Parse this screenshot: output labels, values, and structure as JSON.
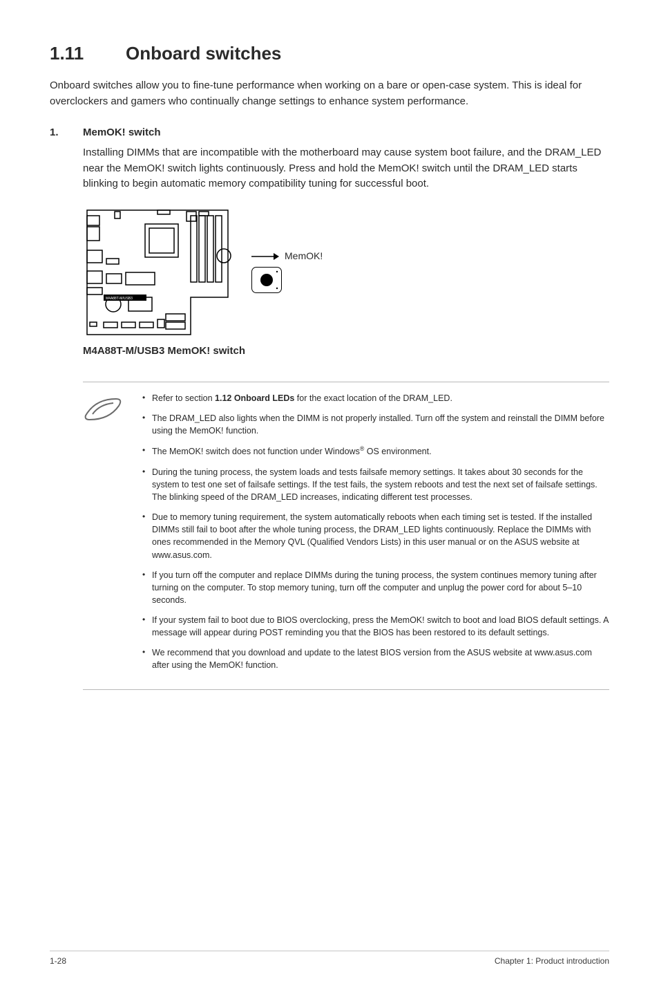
{
  "heading": {
    "num": "1.11",
    "title": "Onboard switches"
  },
  "intro": "Onboard switches allow you to fine-tune performance when working on a bare or open-case system. This is ideal for overclockers and gamers who continually change settings to enhance system performance.",
  "item": {
    "num": "1.",
    "title": "MemOK! switch",
    "body": "Installing DIMMs that are incompatible with the motherboard may cause system boot failure, and the DRAM_LED near the MemOK! switch lights continuously. Press and hold the MemOK! switch until the DRAM_LED starts blinking to begin automatic memory compatibility tuning for successful boot."
  },
  "diagram": {
    "memok_label": "MemOK!",
    "caption": "M4A88T-M/USB3 MemOK! switch",
    "board_tag": "M4A88T-M/USB3"
  },
  "notes": [
    {
      "html": "Refer to section <b>1.12 Onboard LEDs</b> for the exact location of the DRAM_LED."
    },
    {
      "html": "The DRAM_LED also lights when the DIMM is not properly installed. Turn off the system and reinstall the DIMM before using the MemOK! function."
    },
    {
      "html": "The MemOK! switch does not function under Windows<sup>®</sup> OS environment."
    },
    {
      "html": "During the tuning process, the system loads and tests failsafe memory settings. It takes about 30 seconds for the system to test one set of failsafe settings. If the test fails, the system reboots and test the next set of failsafe settings. The blinking speed of the DRAM_LED increases, indicating different test processes."
    },
    {
      "html": "Due to memory tuning requirement, the system automatically reboots when each timing set is tested. If the installed DIMMs still fail to boot after the whole tuning process, the DRAM_LED lights continuously. Replace the DIMMs with ones recommended in the Memory QVL (Qualified Vendors Lists) in this user manual or on the ASUS website at www.asus.com."
    },
    {
      "html": "If you turn off the computer and replace DIMMs during the tuning process, the system continues memory tuning after turning on the computer. To stop memory tuning, turn off the computer and unplug the power cord for about 5–10 seconds."
    },
    {
      "html": "If your system fail to boot due to BIOS overclocking, press the MemOK! switch to boot and load BIOS default settings. A message will appear during POST reminding you that the BIOS has been restored to its default settings."
    },
    {
      "html": "We recommend that you download and update to the latest BIOS version from the ASUS website at www.asus.com after using the MemOK! function."
    }
  ],
  "footer": {
    "page": "1-28",
    "chapter": "Chapter 1: Product introduction"
  },
  "style": {
    "rule_color": "#b8b8b8",
    "text_color": "#2a2a2a",
    "svg_stroke": "#000000"
  }
}
